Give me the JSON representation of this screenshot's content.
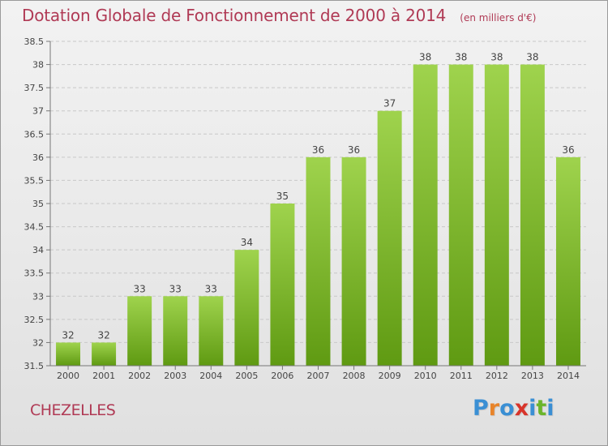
{
  "header": {
    "title": "Dotation Globale de Fonctionnement de 2000 à 2014",
    "subtitle": "(en milliers d'€)"
  },
  "footer": {
    "commune": "CHEZELLES",
    "logo": "Proxiti",
    "logo_colors": [
      "#3a8fd4",
      "#e8842a",
      "#3a8fd4",
      "#d8342a",
      "#3a8fd4",
      "#6bb52b",
      "#3a8fd4"
    ]
  },
  "colors": {
    "bar_top": "#9fd34d",
    "bar_bottom": "#5f9a12",
    "grid": "#c8c8c8",
    "axis_text": "#444444",
    "label_text": "#444444",
    "accent": "#b03a55"
  },
  "chart_data": {
    "type": "bar",
    "title": "Dotation Globale de Fonctionnement de 2000 à 2014",
    "subtitle": "(en milliers d'€)",
    "xlabel": "",
    "ylabel": "",
    "categories": [
      "2000",
      "2001",
      "2002",
      "2003",
      "2004",
      "2005",
      "2006",
      "2007",
      "2008",
      "2009",
      "2010",
      "2011",
      "2012",
      "2013",
      "2014"
    ],
    "values": [
      32,
      32,
      33,
      33,
      33,
      34,
      35,
      36,
      36,
      37,
      38,
      38,
      38,
      38,
      36
    ],
    "labels": [
      "32",
      "32",
      "33",
      "33",
      "33",
      "34",
      "35",
      "36",
      "36",
      "37",
      "38",
      "38",
      "38",
      "38",
      "36"
    ],
    "ylim": [
      31.5,
      38.5
    ],
    "yticks": [
      "31.5",
      "32",
      "32.5",
      "33",
      "33.5",
      "34",
      "34.5",
      "35",
      "35.5",
      "36",
      "36.5",
      "37",
      "37.5",
      "38",
      "38.5"
    ],
    "grid": true,
    "legend": "none"
  }
}
